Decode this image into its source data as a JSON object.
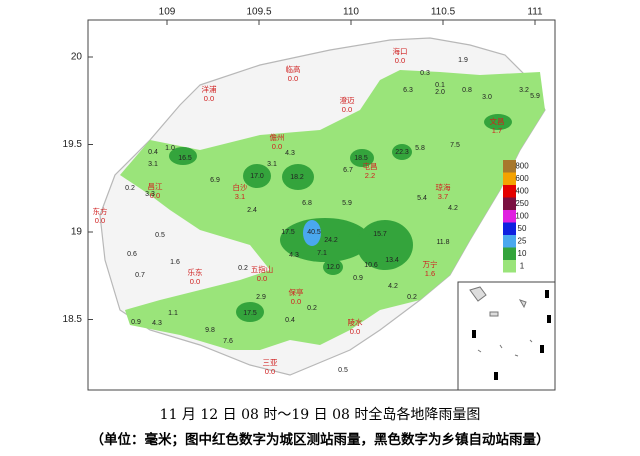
{
  "map": {
    "xticks": [
      109,
      109.5,
      110,
      110.5,
      111
    ],
    "yticks": [
      20,
      19.5,
      19,
      18.5
    ],
    "legend": [
      {
        "value": 800,
        "color": "#a8782c"
      },
      {
        "value": 600,
        "color": "#f4a200"
      },
      {
        "value": 400,
        "color": "#e40000"
      },
      {
        "value": 250,
        "color": "#7a1040"
      },
      {
        "value": 100,
        "color": "#e020e0"
      },
      {
        "value": 50,
        "color": "#1020e0"
      },
      {
        "value": 25,
        "color": "#4aa8ee"
      },
      {
        "value": 10,
        "color": "#34a43c"
      },
      {
        "value": 1,
        "color": "#9ae47a"
      }
    ],
    "cities": [
      {
        "name": "海口",
        "value": "0.0"
      },
      {
        "name": "临高",
        "value": "0.0"
      },
      {
        "name": "洋浦",
        "value": "0.0"
      },
      {
        "name": "澄迈",
        "value": "0.0"
      },
      {
        "name": "儋州",
        "value": "0.0"
      },
      {
        "name": "文昌",
        "value": "1.7"
      },
      {
        "name": "屯昌",
        "value": "2.2"
      },
      {
        "name": "白沙",
        "value": "3.1"
      },
      {
        "name": "昌江",
        "value": "0.0"
      },
      {
        "name": "东方",
        "value": "0.0"
      },
      {
        "name": "琼海",
        "value": "3.7"
      },
      {
        "name": "万宁",
        "value": "1.6"
      },
      {
        "name": "乐东",
        "value": "0.0"
      },
      {
        "name": "五指山",
        "value": "0.0"
      },
      {
        "name": "保亭",
        "value": "0.0"
      },
      {
        "name": "陵水",
        "value": "0.0"
      },
      {
        "name": "三亚",
        "value": "0.0"
      }
    ],
    "stations": [
      "0.3",
      "0.1",
      "1.9",
      "6.3",
      "2.0",
      "0.8",
      "3.0",
      "3.2",
      "5.9",
      "1.0",
      "16.5",
      "3.1",
      "6.9",
      "17.0",
      "18.2",
      "3.1",
      "4.3",
      "6.7",
      "18.5",
      "22.3",
      "5.8",
      "7.5",
      "0.4",
      "0.2",
      "3.3",
      "2.4",
      "6.8",
      "5.9",
      "40.5",
      "17.5",
      "24.2",
      "15.7",
      "12.0",
      "4.3",
      "7.1",
      "10.6",
      "13.4",
      "11.8",
      "4.2",
      "5.4",
      "0.7",
      "0.5",
      "0.6",
      "1.6",
      "0.2",
      "2.9",
      "17.5",
      "4.3",
      "0.9",
      "9.8",
      "7.6",
      "0.5",
      "0.2",
      "4.2",
      "0.9",
      "0.4",
      "0.2",
      "1.1"
    ]
  },
  "caption": {
    "line1": "11 月 12 日 08 时～19 日 08 时全岛各地降雨量图",
    "line2": "（单位：毫米；图中红色数字为城区测站雨量，黑色数字为乡镇自动站雨量）"
  }
}
